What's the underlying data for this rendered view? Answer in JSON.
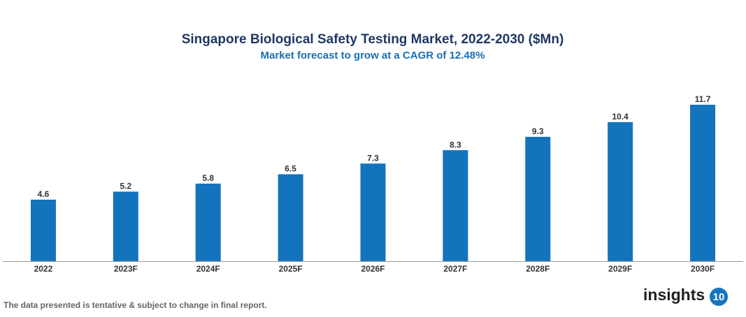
{
  "chart_data": {
    "type": "bar",
    "title": "Singapore Biological Safety Testing Market, 2022-2030 ($Mn)",
    "subtitle": "Market forecast to grow at a CAGR of 12.48%",
    "categories": [
      "2022",
      "2023F",
      "2024F",
      "2025F",
      "2026F",
      "2027F",
      "2028F",
      "2029F",
      "2030F"
    ],
    "values": [
      4.6,
      5.2,
      5.8,
      6.5,
      7.3,
      8.3,
      9.3,
      10.4,
      11.7
    ],
    "color": "#1473bd"
  },
  "footer": {
    "note": "The data presented is tentative & subject to change in final report."
  },
  "logo": {
    "text": "insights",
    "badge": "10"
  }
}
